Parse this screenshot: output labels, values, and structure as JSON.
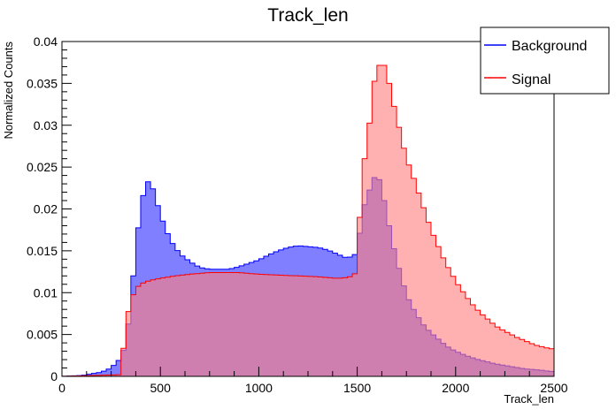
{
  "chart_data": {
    "type": "histogram",
    "title": "Track_len",
    "xlabel": "Track_len",
    "ylabel": "Normalized Counts",
    "xlim": [
      0,
      2500
    ],
    "ylim": [
      0,
      0.04
    ],
    "bin_width": 25,
    "x_ticks": [
      0,
      500,
      1000,
      1500,
      2000,
      2500
    ],
    "x_tick_labels": [
      "0",
      "500",
      "1000",
      "1500",
      "2000",
      "2500"
    ],
    "y_ticks": [
      0,
      0.005,
      0.01,
      0.015,
      0.02,
      0.025,
      0.03,
      0.035,
      0.04
    ],
    "y_tick_labels": [
      "0",
      "0.005",
      "0.01",
      "0.015",
      "0.02",
      "0.025",
      "0.03",
      "0.035",
      "0.04"
    ],
    "grid": false,
    "legend_position": "top-right",
    "series": [
      {
        "name": "Background",
        "line_color": "#0000ff",
        "fill_color": "#7f7fff",
        "points": [
          [
            0,
            0
          ],
          [
            100,
            0.0001
          ],
          [
            200,
            0.0005
          ],
          [
            250,
            0.001
          ],
          [
            300,
            0.0022
          ],
          [
            325,
            0.004
          ],
          [
            350,
            0.0085
          ],
          [
            375,
            0.0155
          ],
          [
            400,
            0.02
          ],
          [
            425,
            0.0232
          ],
          [
            450,
            0.0233
          ],
          [
            475,
            0.0215
          ],
          [
            500,
            0.0193
          ],
          [
            525,
            0.0178
          ],
          [
            550,
            0.0163
          ],
          [
            600,
            0.0146
          ],
          [
            650,
            0.0137
          ],
          [
            700,
            0.013
          ],
          [
            750,
            0.0128
          ],
          [
            850,
            0.0128
          ],
          [
            900,
            0.0131
          ],
          [
            1000,
            0.0139
          ],
          [
            1050,
            0.0145
          ],
          [
            1100,
            0.015
          ],
          [
            1150,
            0.0154
          ],
          [
            1200,
            0.0156
          ],
          [
            1250,
            0.0155
          ],
          [
            1300,
            0.0154
          ],
          [
            1350,
            0.0151
          ],
          [
            1400,
            0.0146
          ],
          [
            1450,
            0.0141
          ],
          [
            1500,
            0.0147
          ],
          [
            1525,
            0.0195
          ],
          [
            1550,
            0.0215
          ],
          [
            1575,
            0.023
          ],
          [
            1600,
            0.0245
          ],
          [
            1625,
            0.0225
          ],
          [
            1650,
            0.0195
          ],
          [
            1675,
            0.0165
          ],
          [
            1700,
            0.014
          ],
          [
            1725,
            0.0118
          ],
          [
            1750,
            0.0098
          ],
          [
            1775,
            0.0085
          ],
          [
            1800,
            0.0075
          ],
          [
            1825,
            0.0065
          ],
          [
            1850,
            0.0058
          ],
          [
            1875,
            0.0052
          ],
          [
            1900,
            0.0047
          ],
          [
            1925,
            0.0042
          ],
          [
            1950,
            0.0037
          ],
          [
            1975,
            0.0033
          ],
          [
            2000,
            0.003
          ],
          [
            2050,
            0.0025
          ],
          [
            2100,
            0.0021
          ],
          [
            2150,
            0.0018
          ],
          [
            2200,
            0.0015
          ],
          [
            2250,
            0.0013
          ],
          [
            2300,
            0.0011
          ],
          [
            2350,
            0.0009
          ],
          [
            2400,
            0.0008
          ],
          [
            2450,
            0.0007
          ],
          [
            2475,
            0.0006
          ]
        ]
      },
      {
        "name": "Signal",
        "line_color": "#ff0000",
        "fill_color": "#ff7f7f",
        "points": [
          [
            0,
            0
          ],
          [
            300,
            0.0002
          ],
          [
            325,
            0.0065
          ],
          [
            350,
            0.009
          ],
          [
            375,
            0.0105
          ],
          [
            400,
            0.011
          ],
          [
            425,
            0.0113
          ],
          [
            475,
            0.0116
          ],
          [
            525,
            0.0118
          ],
          [
            575,
            0.012
          ],
          [
            650,
            0.0122
          ],
          [
            750,
            0.0124
          ],
          [
            900,
            0.0124
          ],
          [
            1000,
            0.0122
          ],
          [
            1100,
            0.0121
          ],
          [
            1200,
            0.012
          ],
          [
            1300,
            0.0119
          ],
          [
            1350,
            0.0118
          ],
          [
            1400,
            0.0117
          ],
          [
            1450,
            0.0118
          ],
          [
            1475,
            0.012
          ],
          [
            1500,
            0.0125
          ],
          [
            1525,
            0.0255
          ],
          [
            1550,
            0.0265
          ],
          [
            1575,
            0.034
          ],
          [
            1600,
            0.0365
          ],
          [
            1625,
            0.0378
          ],
          [
            1650,
            0.0365
          ],
          [
            1675,
            0.0335
          ],
          [
            1700,
            0.031
          ],
          [
            1725,
            0.0285
          ],
          [
            1750,
            0.026
          ],
          [
            1775,
            0.0245
          ],
          [
            1800,
            0.0228
          ],
          [
            1825,
            0.021
          ],
          [
            1850,
            0.0193
          ],
          [
            1875,
            0.0175
          ],
          [
            1900,
            0.0162
          ],
          [
            1925,
            0.0148
          ],
          [
            1950,
            0.0135
          ],
          [
            1975,
            0.0125
          ],
          [
            2000,
            0.0114
          ],
          [
            2025,
            0.0105
          ],
          [
            2050,
            0.0097
          ],
          [
            2075,
            0.0089
          ],
          [
            2100,
            0.0082
          ],
          [
            2125,
            0.0076
          ],
          [
            2150,
            0.0071
          ],
          [
            2175,
            0.0066
          ],
          [
            2200,
            0.0061
          ],
          [
            2225,
            0.0057
          ],
          [
            2250,
            0.0054
          ],
          [
            2275,
            0.0051
          ],
          [
            2300,
            0.0048
          ],
          [
            2325,
            0.0045
          ],
          [
            2350,
            0.0043
          ],
          [
            2375,
            0.004
          ],
          [
            2400,
            0.0038
          ],
          [
            2425,
            0.0036
          ],
          [
            2450,
            0.0035
          ],
          [
            2475,
            0.0033
          ]
        ]
      }
    ]
  }
}
